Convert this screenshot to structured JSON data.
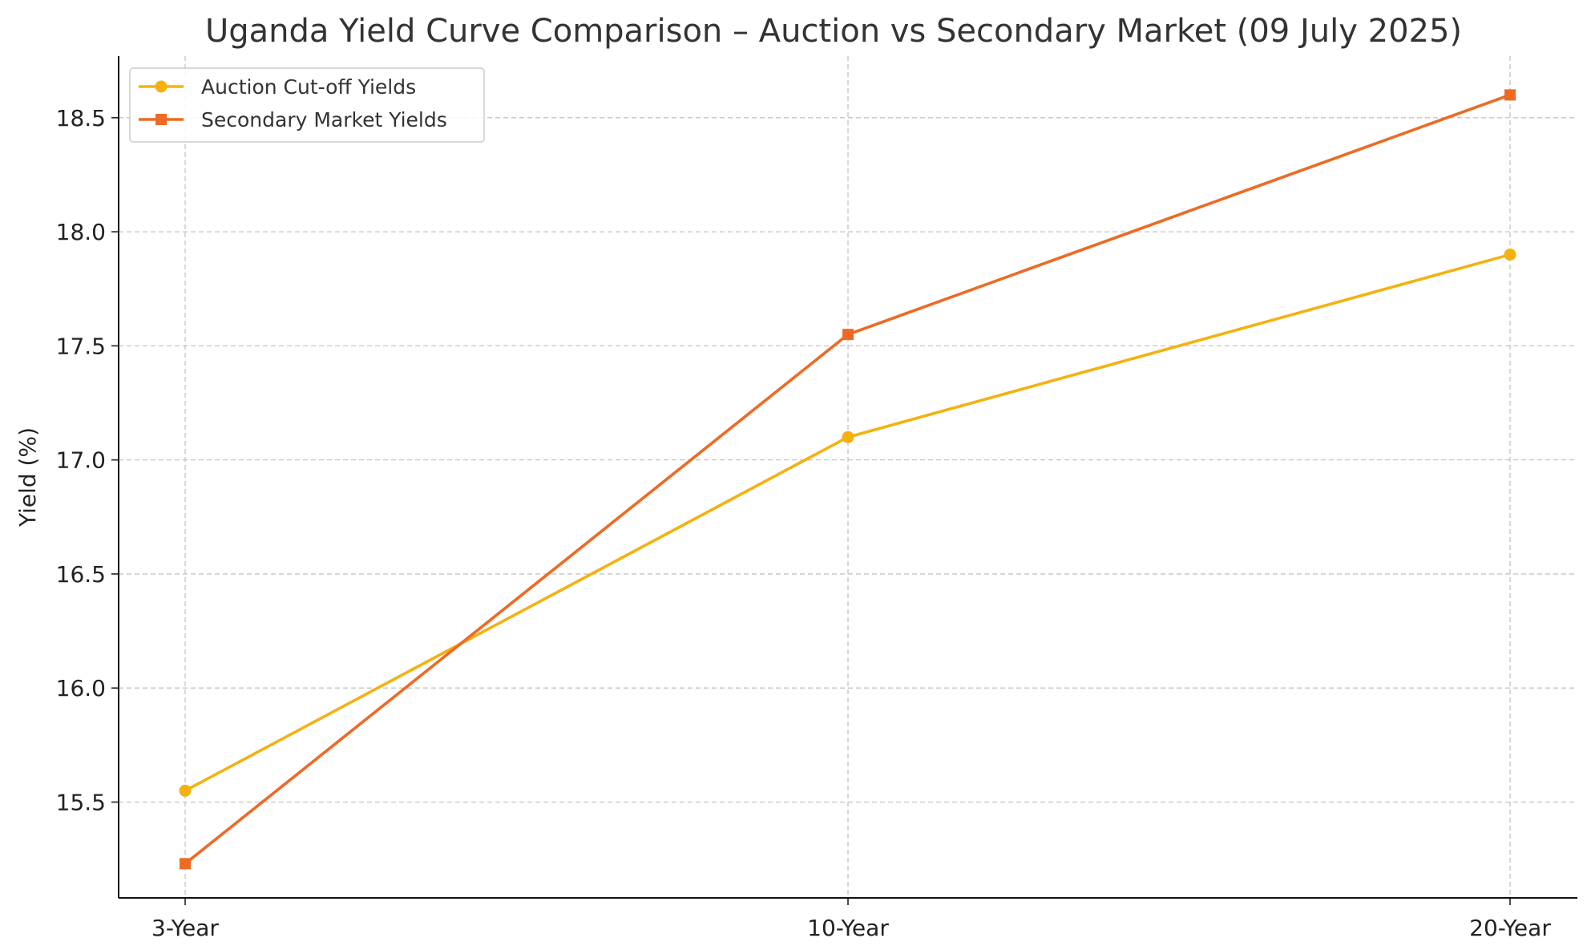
{
  "chart_data": {
    "type": "line",
    "title": "Uganda Yield Curve Comparison – Auction vs Secondary Market (09 July 2025)",
    "xlabel": "",
    "ylabel": "Yield (%)",
    "categories": [
      "3-Year",
      "10-Year",
      "20-Year"
    ],
    "ylim": [
      15.08,
      18.77
    ],
    "yticks": [
      15.5,
      16.0,
      16.5,
      17.0,
      17.5,
      18.0,
      18.5
    ],
    "ytick_labels": [
      "15.5",
      "16.0",
      "16.5",
      "17.0",
      "17.5",
      "18.0",
      "18.5"
    ],
    "grid": true,
    "legend_position": "top-left",
    "series": [
      {
        "name": "Auction Cut-off Yields",
        "values": [
          15.55,
          17.1,
          17.9
        ],
        "color": "#F5B10F",
        "marker": "circle"
      },
      {
        "name": "Secondary Market Yields",
        "values": [
          15.23,
          17.55,
          18.6
        ],
        "color": "#EE6A24",
        "marker": "square"
      }
    ]
  }
}
